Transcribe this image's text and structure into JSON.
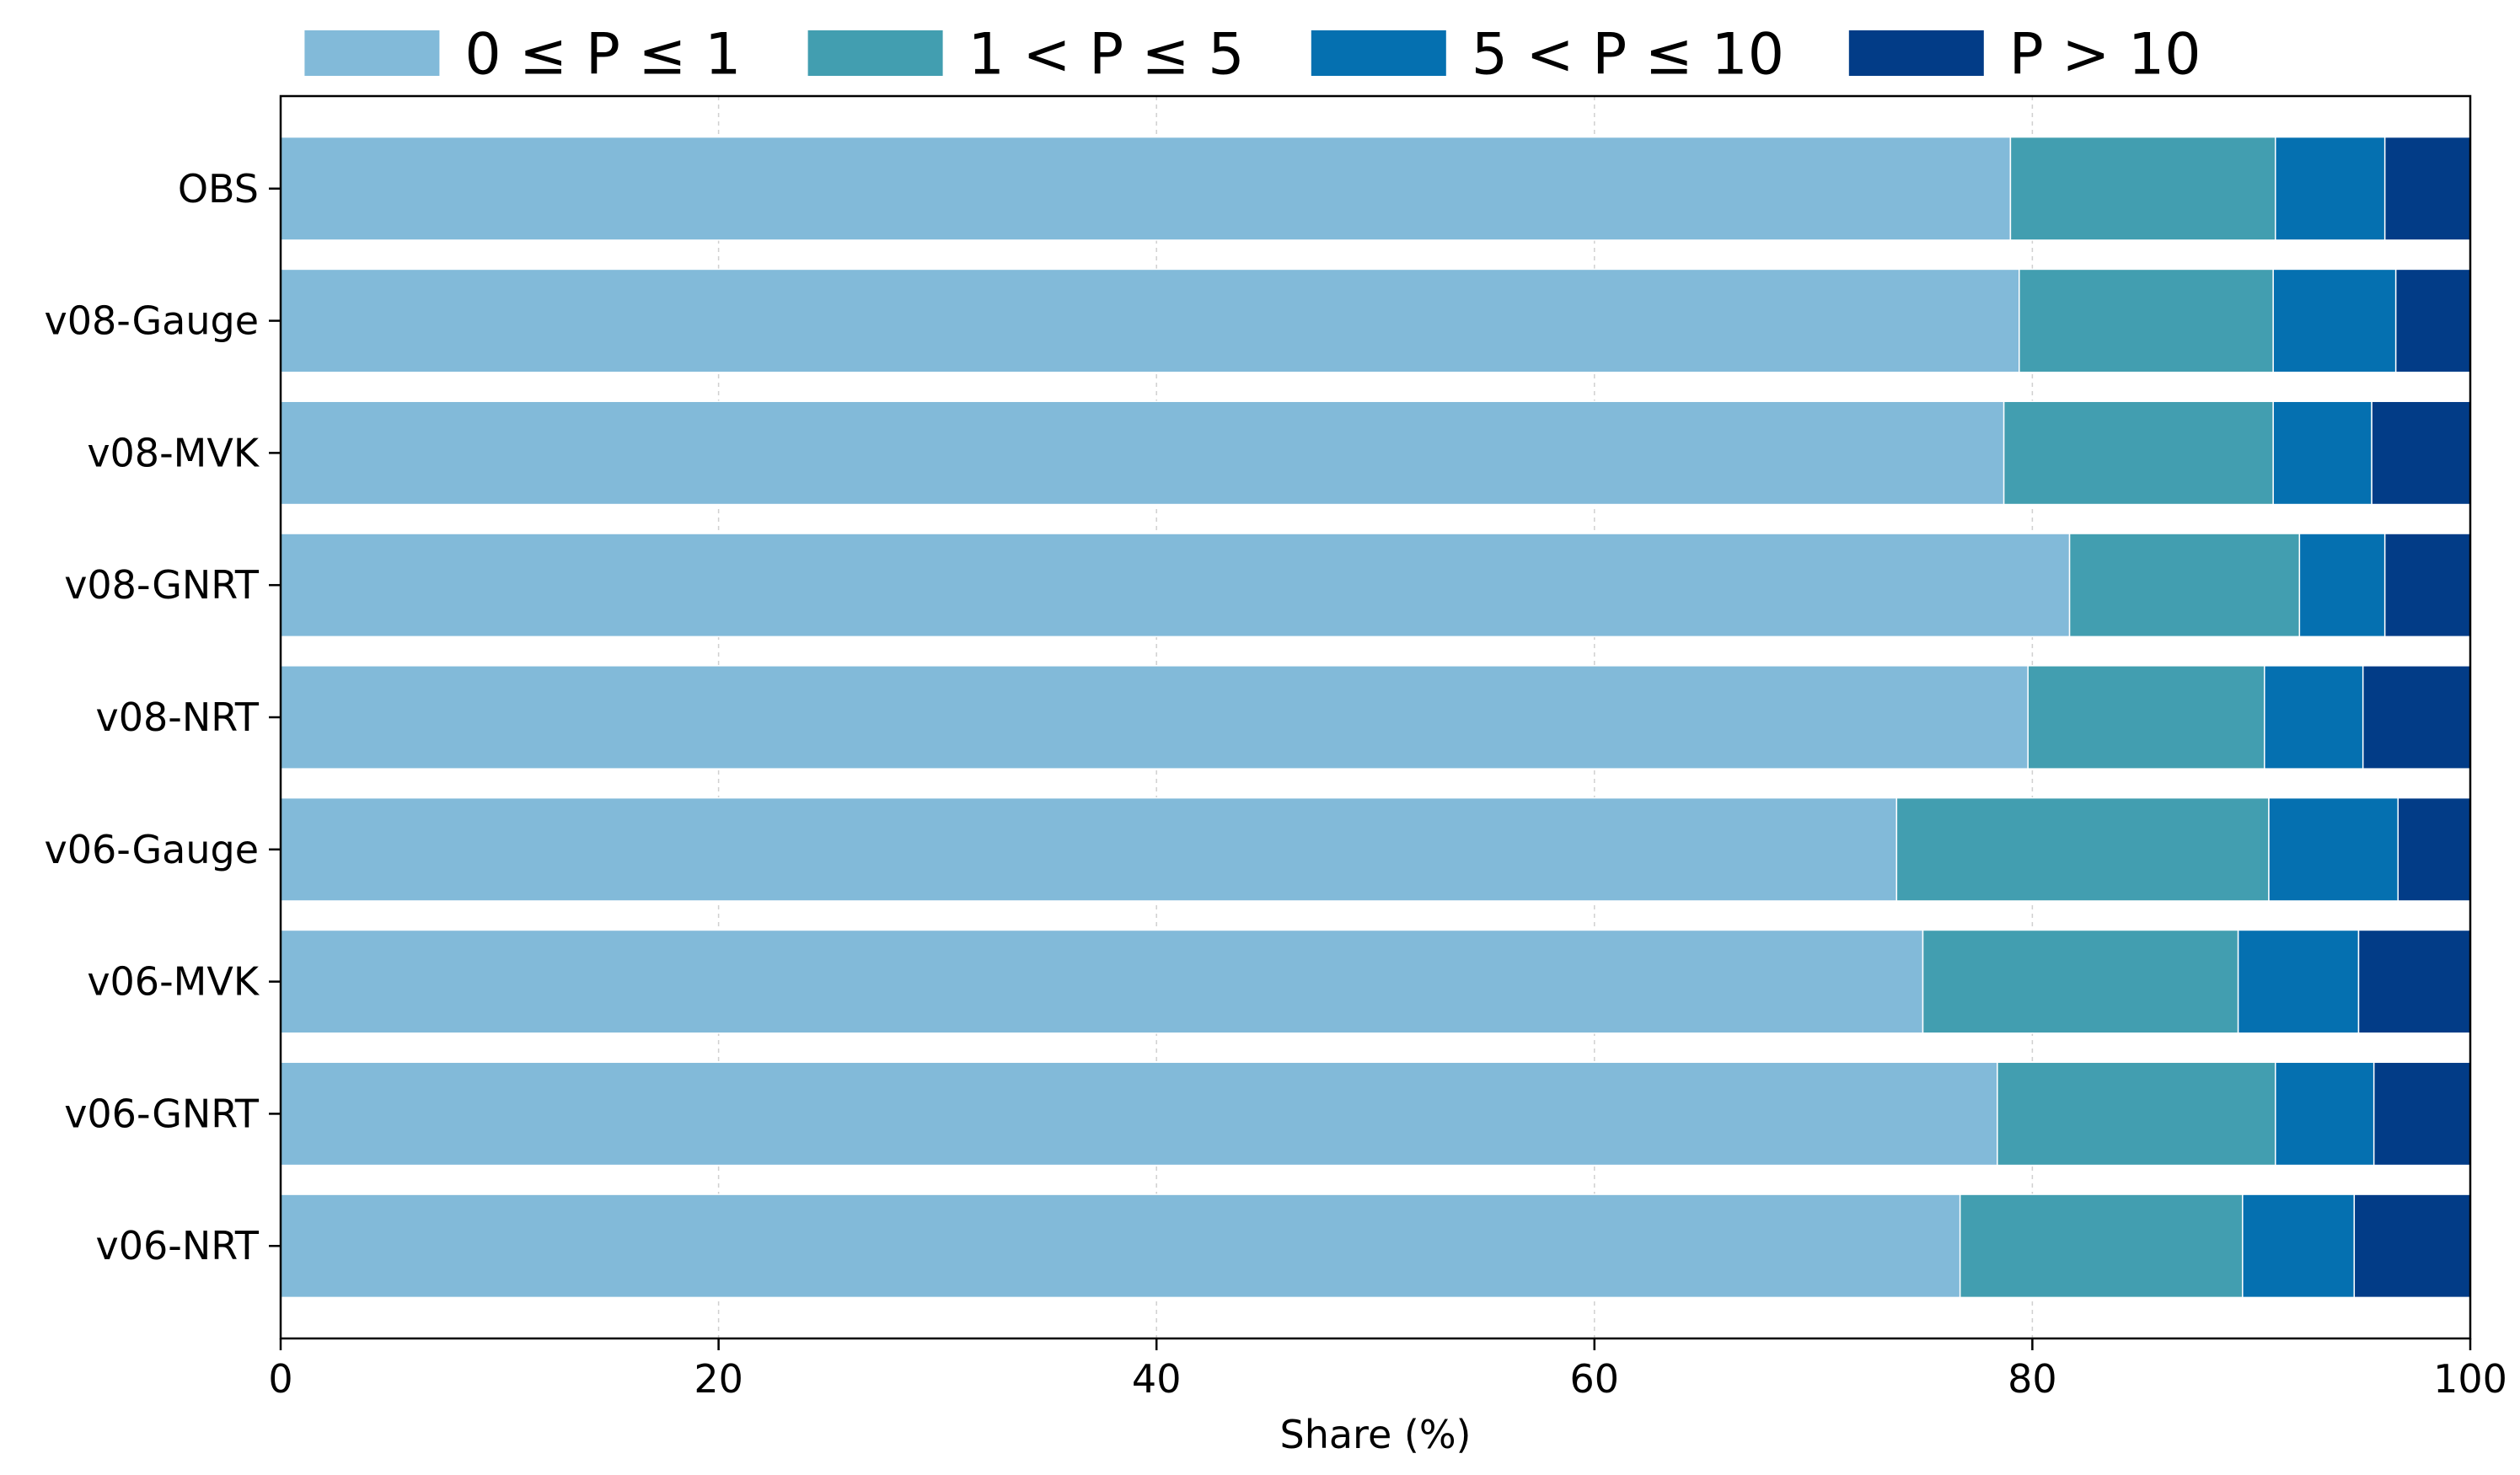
{
  "chart_data": {
    "type": "bar",
    "orientation": "horizontal",
    "stacked": true,
    "categories": [
      "OBS",
      "v08-Gauge",
      "v08-MVK",
      "v08-GNRT",
      "v08-NRT",
      "v06-Gauge",
      "v06-MVK",
      "v06-GNRT",
      "v06-NRT"
    ],
    "series": [
      {
        "name": "0 ≤ P ≤ 1",
        "color": "#82bad9",
        "values": [
          79.0,
          79.4,
          78.7,
          81.7,
          79.8,
          73.8,
          75.0,
          78.4,
          76.7
        ]
      },
      {
        "name": "1 < P ≤ 5",
        "color": "#429eb0",
        "values": [
          12.1,
          11.6,
          12.3,
          10.5,
          10.8,
          17.0,
          14.4,
          12.7,
          12.9
        ]
      },
      {
        "name": "5 < P ≤ 10",
        "color": "#0570b0",
        "values": [
          5.0,
          5.6,
          4.5,
          3.9,
          4.5,
          5.9,
          5.5,
          4.5,
          5.1
        ]
      },
      {
        "name": "P > 10",
        "color": "#023c87",
        "values": [
          3.9,
          3.4,
          4.5,
          3.9,
          4.9,
          3.3,
          5.1,
          4.4,
          5.3
        ]
      }
    ],
    "xlabel": "Share (%)",
    "ylabel": "",
    "title": "",
    "xlim": [
      0,
      100
    ],
    "xticks": [
      "0",
      "20",
      "40",
      "60",
      "80",
      "100"
    ],
    "grid": "vertical dashed",
    "legend_position": "top"
  }
}
